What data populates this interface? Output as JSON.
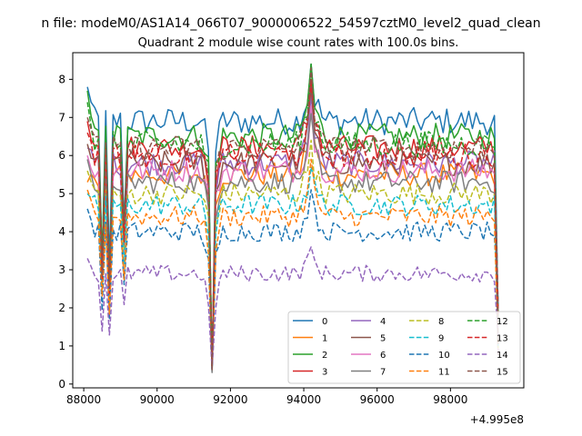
{
  "chart_data": {
    "type": "line",
    "suptitle": "n file: modeM0/AS1A14_066T07_9000006522_54597cztM0_level2_quad_clean",
    "title": "Quadrant 2 module wise count rates with 100.0s bins.",
    "xlabel": "",
    "ylabel": "",
    "x_offset_label": "+4.995e8",
    "xlim": [
      87700,
      100000
    ],
    "ylim": [
      -0.1,
      8.7
    ],
    "xticks": [
      88000,
      90000,
      92000,
      94000,
      96000,
      98000
    ],
    "yticks": [
      0,
      1,
      2,
      3,
      4,
      5,
      6,
      7,
      8
    ],
    "xticklabels": [
      "88000",
      "90000",
      "92000",
      "94000",
      "96000",
      "98000"
    ],
    "yticklabels": [
      "0",
      "1",
      "2",
      "3",
      "4",
      "5",
      "6",
      "7",
      "8"
    ],
    "x_start": 88100,
    "x_step": 100,
    "features": [
      {
        "x": 88100,
        "kind": "start"
      },
      {
        "x": 88500,
        "depth": 0.45
      },
      {
        "x": 88700,
        "depth": 0.4
      },
      {
        "x": 89100,
        "depth": 0.6
      },
      {
        "x": 91500,
        "to": 0.3,
        "kind": "drop"
      },
      {
        "x": 94200,
        "kind": "peak"
      },
      {
        "x": 99300,
        "kind": "end"
      }
    ],
    "grid": false,
    "legend_position": "lower-right",
    "series": [
      {
        "name": "0",
        "color": "#1f77b4",
        "style": "solid",
        "level": 6.9,
        "start": 7.8,
        "peak": 8.4
      },
      {
        "name": "1",
        "color": "#ff7f0e",
        "style": "solid",
        "level": 5.5,
        "start": 5.3,
        "peak": 7.3
      },
      {
        "name": "2",
        "color": "#2ca02c",
        "style": "solid",
        "level": 6.5,
        "start": 7.7,
        "peak": 8.4
      },
      {
        "name": "3",
        "color": "#d62728",
        "style": "solid",
        "level": 6.2,
        "start": 6.9,
        "peak": 8.0
      },
      {
        "name": "4",
        "color": "#9467bd",
        "style": "solid",
        "level": 5.8,
        "start": 6.2,
        "peak": 7.6
      },
      {
        "name": "5",
        "color": "#8c564b",
        "style": "solid",
        "level": 5.8,
        "start": 6.3,
        "peak": 7.8
      },
      {
        "name": "6",
        "color": "#e377c2",
        "style": "solid",
        "level": 5.6,
        "start": 6.0,
        "peak": 7.3
      },
      {
        "name": "7",
        "color": "#7f7f7f",
        "style": "solid",
        "level": 5.3,
        "start": 5.9,
        "peak": 7.1
      },
      {
        "name": "8",
        "color": "#bcbd22",
        "style": "dashed",
        "level": 5.0,
        "start": 5.6,
        "peak": 6.4
      },
      {
        "name": "9",
        "color": "#17becf",
        "style": "dashed",
        "level": 4.7,
        "start": 5.0,
        "peak": 5.7
      },
      {
        "name": "10",
        "color": "#1f77b4",
        "style": "dashed",
        "level": 4.0,
        "start": 4.6,
        "peak": 5.1
      },
      {
        "name": "11",
        "color": "#ff7f0e",
        "style": "dashed",
        "level": 4.4,
        "start": 5.1,
        "peak": 5.9
      },
      {
        "name": "12",
        "color": "#2ca02c",
        "style": "dashed",
        "level": 6.3,
        "start": 7.4,
        "peak": 8.4
      },
      {
        "name": "13",
        "color": "#d62728",
        "style": "dashed",
        "level": 6.0,
        "start": 6.6,
        "peak": 7.9
      },
      {
        "name": "14",
        "color": "#9467bd",
        "style": "dashed",
        "level": 2.9,
        "start": 3.3,
        "peak": 3.6
      },
      {
        "name": "15",
        "color": "#8c564b",
        "style": "dashed",
        "level": 6.2,
        "start": 7.0,
        "peak": 8.3
      }
    ]
  }
}
